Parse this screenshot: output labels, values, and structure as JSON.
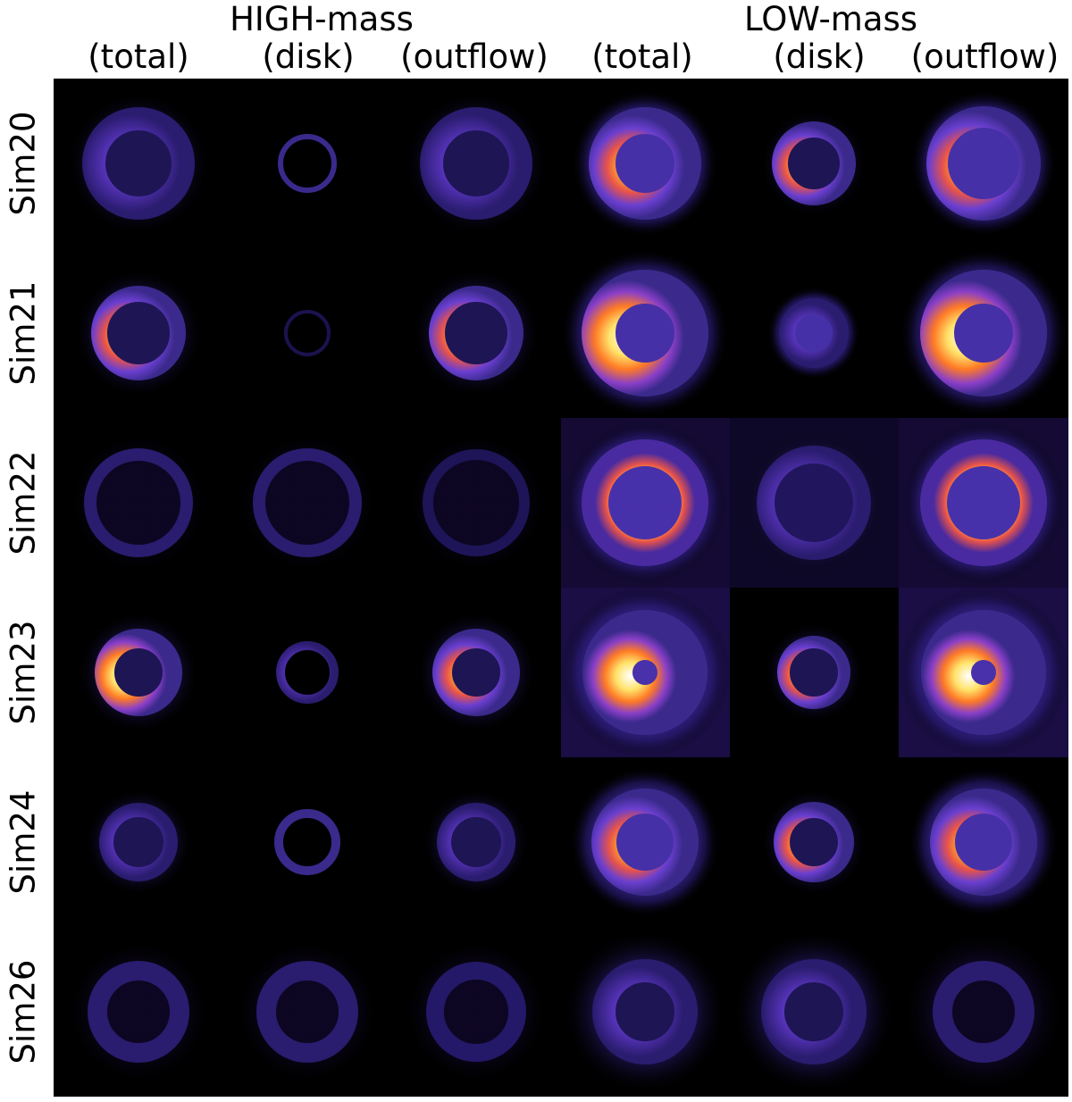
{
  "header": {
    "groups": [
      "HIGH-mass",
      "LOW-mass"
    ],
    "columns": [
      "(total)",
      "(disk)",
      "(outflow)",
      "(total)",
      "(disk)",
      "(outflow)"
    ]
  },
  "rows": [
    "Sim20",
    "Sim21",
    "Sim22",
    "Sim23",
    "Sim24",
    "Sim26"
  ],
  "colors": {
    "background": "#000000",
    "colormap": [
      "#000000",
      "#1a0a3c",
      "#3b2a8c",
      "#6a3fd0",
      "#b03fb4",
      "#e8534a",
      "#ff8a1e",
      "#ffd23a",
      "#fffbd8"
    ]
  }
}
